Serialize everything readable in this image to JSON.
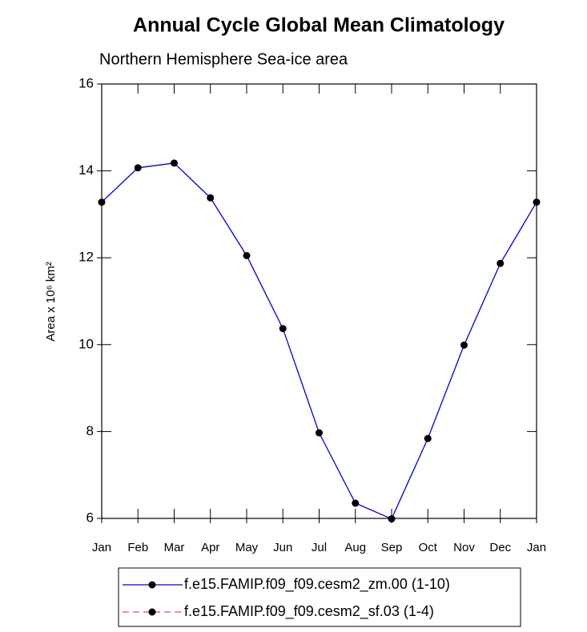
{
  "chart_data": {
    "type": "line",
    "title": "Annual Cycle Global Mean Climatology",
    "subtitle": "Northern Hemisphere Sea-ice area",
    "y_label": "Area x 10⁶ km²",
    "categories": [
      "Jan",
      "Feb",
      "Mar",
      "Apr",
      "May",
      "Jun",
      "Jul",
      "Aug",
      "Sep",
      "Oct",
      "Nov",
      "Dec",
      "Jan"
    ],
    "series": [
      {
        "name": "f.e15.FAMIP.f09_f09.cesm2_zm.00 (1-10)",
        "color": "#0000cc",
        "dash": false,
        "values": [
          13.28,
          14.07,
          14.18,
          13.38,
          12.05,
          10.37,
          7.97,
          6.35,
          5.99,
          7.84,
          9.99,
          11.87,
          13.28
        ]
      },
      {
        "name": "f.e15.FAMIP.f09_f09.cesm2_sf.03 (1-4)",
        "color": "#e84a4a",
        "dash": true,
        "values": [
          null,
          null,
          null,
          null,
          null,
          null,
          null,
          null,
          null,
          null,
          null,
          null,
          null
        ]
      }
    ],
    "ylim": [
      6,
      16
    ],
    "yticks": [
      6,
      8,
      10,
      12,
      14,
      16
    ]
  }
}
